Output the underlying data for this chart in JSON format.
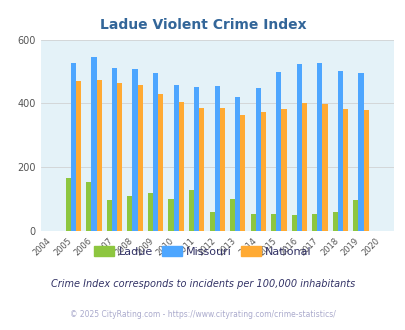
{
  "title": "Ladue Violent Crime Index",
  "title_color": "#336699",
  "years": [
    2004,
    2005,
    2006,
    2007,
    2008,
    2009,
    2010,
    2011,
    2012,
    2013,
    2014,
    2015,
    2016,
    2017,
    2018,
    2019,
    2020
  ],
  "ladue": [
    0,
    165,
    155,
    98,
    110,
    120,
    100,
    127,
    60,
    100,
    52,
    52,
    50,
    52,
    60,
    98,
    0
  ],
  "missouri": [
    0,
    528,
    545,
    510,
    508,
    495,
    458,
    452,
    455,
    420,
    448,
    500,
    525,
    528,
    502,
    495,
    0
  ],
  "national": [
    0,
    470,
    472,
    465,
    458,
    430,
    403,
    387,
    387,
    363,
    372,
    383,
    400,
    397,
    381,
    379,
    0
  ],
  "ladue_color": "#8dc63f",
  "missouri_color": "#4da6ff",
  "national_color": "#ffaa33",
  "bg_color": "#e4f2f8",
  "ylim": [
    0,
    600
  ],
  "yticks": [
    0,
    200,
    400,
    600
  ],
  "grid_color": "#cccccc",
  "footnote1": "Crime Index corresponds to incidents per 100,000 inhabitants",
  "footnote2": "© 2025 CityRating.com - https://www.cityrating.com/crime-statistics/",
  "footnote1_color": "#333366",
  "footnote2_color": "#aaaacc",
  "bar_width": 0.25
}
